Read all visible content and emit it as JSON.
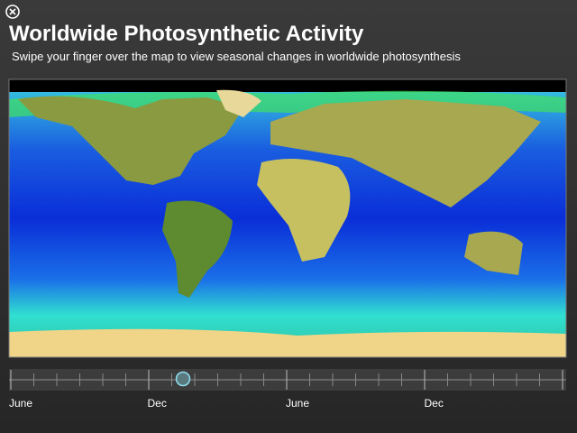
{
  "header": {
    "title": "Worldwide Photosynthetic Activity",
    "subtitle": "Swipe your finger over the map to view seasonal changes in worldwide photosynthesis"
  },
  "timeline": {
    "labels": [
      "June",
      "Dec",
      "June",
      "Dec"
    ]
  }
}
